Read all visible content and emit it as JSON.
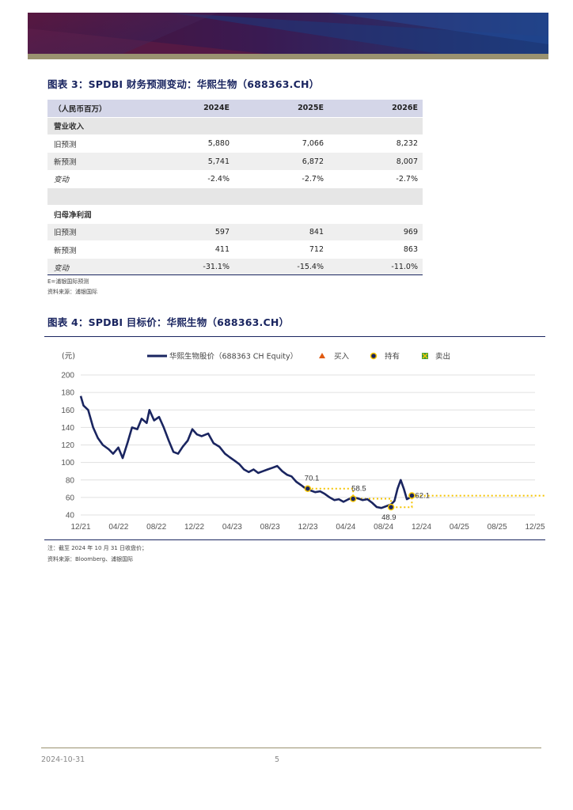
{
  "colors": {
    "navy": "#1a2560",
    "header_band": "#d4d6e8",
    "shade": "#efefef",
    "section": "#e6e6e6",
    "gold": "#f5c400",
    "buy": "#e05a10",
    "sell": "#3aa040",
    "accent_stripe": "#9a9270"
  },
  "figure3": {
    "label": "图表 3：",
    "title": "SPDBI 财务预测变动：华熙生物（688363.CH）",
    "header": [
      "（人民币百万）",
      "2024E",
      "2025E",
      "2026E"
    ],
    "section1": "营业收入",
    "rows1": [
      [
        "旧预测",
        "5,880",
        "7,066",
        "8,232"
      ],
      [
        "新预测",
        "5,741",
        "6,872",
        "8,007"
      ],
      [
        "变动",
        "-2.4%",
        "-2.7%",
        "-2.7%"
      ]
    ],
    "section2": "归母净利润",
    "rows2": [
      [
        "旧预测",
        "597",
        "841",
        "969"
      ],
      [
        "新预测",
        "411",
        "712",
        "863"
      ],
      [
        "变动",
        "-31.1%",
        "-15.4%",
        "-11.0%"
      ]
    ],
    "note1": "E=浦银国际预测",
    "note2": "资料来源：浦银国际"
  },
  "figure4": {
    "label": "图表 4：",
    "title": "SPDBI 目标价：华熙生物（688363.CH）",
    "note1": "注：截至 2024 年 10 月 31 日收盘价；",
    "note2": "资料来源：Bloomberg、浦银国际"
  },
  "chart_data": {
    "type": "line",
    "ylabel": "(元)",
    "ylim": [
      40,
      200
    ],
    "yticks": [
      40,
      60,
      80,
      100,
      120,
      140,
      160,
      180,
      200
    ],
    "xticks": [
      "12/21",
      "04/22",
      "08/22",
      "12/22",
      "04/23",
      "08/23",
      "12/23",
      "04/24",
      "08/24",
      "12/24",
      "04/25",
      "08/25",
      "12/25"
    ],
    "legend": [
      "华熙生物股价（688363 CH Equity）",
      "买入",
      "持有",
      "卖出"
    ],
    "grid": true,
    "price_series": {
      "name": "华熙生物股价（688363 CH Equity）",
      "points": [
        [
          "2021-12-01",
          176
        ],
        [
          "2021-12-10",
          165
        ],
        [
          "2021-12-25",
          160
        ],
        [
          "2022-01-10",
          140
        ],
        [
          "2022-01-25",
          128
        ],
        [
          "2022-02-10",
          120
        ],
        [
          "2022-03-01",
          115
        ],
        [
          "2022-03-15",
          110
        ],
        [
          "2022-04-01",
          117
        ],
        [
          "2022-04-15",
          105
        ],
        [
          "2022-05-01",
          123
        ],
        [
          "2022-05-15",
          140
        ],
        [
          "2022-06-01",
          138
        ],
        [
          "2022-06-15",
          150
        ],
        [
          "2022-07-01",
          145
        ],
        [
          "2022-07-10",
          160
        ],
        [
          "2022-07-25",
          148
        ],
        [
          "2022-08-10",
          152
        ],
        [
          "2022-08-25",
          140
        ],
        [
          "2022-09-10",
          125
        ],
        [
          "2022-09-25",
          112
        ],
        [
          "2022-10-10",
          110
        ],
        [
          "2022-10-25",
          118
        ],
        [
          "2022-11-10",
          125
        ],
        [
          "2022-11-25",
          138
        ],
        [
          "2022-12-10",
          132
        ],
        [
          "2022-12-25",
          130
        ],
        [
          "2023-01-15",
          133
        ],
        [
          "2023-02-01",
          122
        ],
        [
          "2023-02-20",
          118
        ],
        [
          "2023-03-10",
          110
        ],
        [
          "2023-03-25",
          106
        ],
        [
          "2023-04-10",
          102
        ],
        [
          "2023-04-25",
          98
        ],
        [
          "2023-05-10",
          92
        ],
        [
          "2023-05-25",
          89
        ],
        [
          "2023-06-10",
          92
        ],
        [
          "2023-06-25",
          88
        ],
        [
          "2023-07-10",
          90
        ],
        [
          "2023-07-25",
          92
        ],
        [
          "2023-08-10",
          94
        ],
        [
          "2023-08-25",
          96
        ],
        [
          "2023-09-10",
          90
        ],
        [
          "2023-09-25",
          86
        ],
        [
          "2023-10-10",
          84
        ],
        [
          "2023-10-25",
          78
        ],
        [
          "2023-11-10",
          74
        ],
        [
          "2023-11-25",
          70
        ],
        [
          "2023-12-10",
          68
        ],
        [
          "2023-12-25",
          66
        ],
        [
          "2024-01-10",
          67
        ],
        [
          "2024-01-25",
          64
        ],
        [
          "2024-02-10",
          60
        ],
        [
          "2024-02-25",
          57
        ],
        [
          "2024-03-10",
          58
        ],
        [
          "2024-03-25",
          55
        ],
        [
          "2024-04-10",
          58
        ],
        [
          "2024-04-25",
          60
        ],
        [
          "2024-05-10",
          59
        ],
        [
          "2024-05-25",
          57
        ],
        [
          "2024-06-10",
          58
        ],
        [
          "2024-06-25",
          54
        ],
        [
          "2024-07-10",
          49
        ],
        [
          "2024-07-25",
          48
        ],
        [
          "2024-08-10",
          50
        ],
        [
          "2024-08-25",
          52
        ],
        [
          "2024-09-05",
          56
        ],
        [
          "2024-09-15",
          70
        ],
        [
          "2024-09-25",
          80
        ],
        [
          "2024-10-05",
          70
        ],
        [
          "2024-10-15",
          58
        ],
        [
          "2024-10-25",
          60
        ],
        [
          "2024-10-31",
          62.1
        ]
      ]
    },
    "target_price_series": {
      "name": "持有",
      "points": [
        [
          "2023-12-01",
          70.1
        ],
        [
          "2024-04-25",
          70.1
        ],
        [
          "2024-04-25",
          58.5
        ],
        [
          "2024-08-25",
          58.5
        ],
        [
          "2024-08-25",
          48.9
        ],
        [
          "2024-10-31",
          48.9
        ],
        [
          "2024-10-31",
          62.1
        ],
        [
          "2025-12-31",
          62.1
        ]
      ]
    },
    "rating_markers": [
      {
        "date": "2023-12-01",
        "value": 70.1,
        "rating": "持有",
        "label": "70.1"
      },
      {
        "date": "2024-04-25",
        "value": 58.5,
        "rating": "持有",
        "label": "58.5"
      },
      {
        "date": "2024-08-25",
        "value": 48.9,
        "rating": "持有",
        "label": "48.9"
      },
      {
        "date": "2024-10-31",
        "value": 62.1,
        "rating": "持有",
        "label": "62.1"
      }
    ]
  },
  "footer": {
    "date": "2024-10-31",
    "page": "5"
  }
}
